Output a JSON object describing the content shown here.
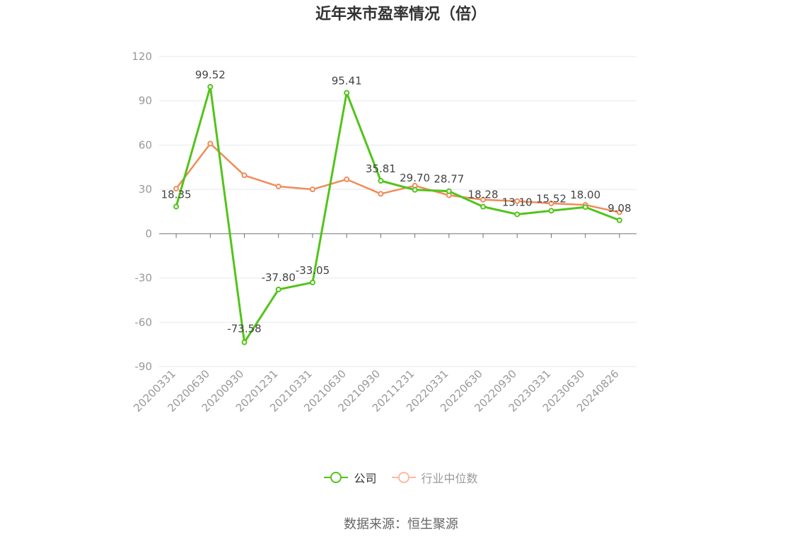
{
  "chart_data": {
    "type": "line",
    "title": "近年来市盈率情况（倍）",
    "categories": [
      "20200331",
      "20200630",
      "20200930",
      "20201231",
      "20210331",
      "20210630",
      "20210930",
      "20211231",
      "20220331",
      "20220630",
      "20220930",
      "20230331",
      "20230630",
      "20240826"
    ],
    "ylim": [
      -90,
      120
    ],
    "yticks": [
      120,
      90,
      60,
      30,
      0,
      -30,
      -60,
      -90
    ],
    "grid": true,
    "legend_position": "bottom",
    "series": [
      {
        "name": "公司",
        "color": "#52c41a",
        "values": [
          18.35,
          99.52,
          -73.58,
          -37.8,
          -33.05,
          95.41,
          35.81,
          29.7,
          28.77,
          18.28,
          13.1,
          15.52,
          18.0,
          9.08
        ],
        "labels": [
          "18.35",
          "99.52",
          "-73.58",
          "-37.80",
          "-33.05",
          "95.41",
          "35.81",
          "29.70",
          "28.77",
          "18.28",
          "13.10",
          "15.52",
          "18.00",
          "9.08"
        ]
      },
      {
        "name": "行业中位数",
        "color": "#f08c5a",
        "values": [
          30.5,
          61.0,
          39.5,
          32.0,
          30.0,
          36.8,
          27.0,
          32.5,
          26.0,
          23.0,
          22.0,
          20.5,
          19.5,
          14.5
        ]
      }
    ]
  },
  "legend": {
    "company": "公司",
    "industry": "行业中位数"
  },
  "source": "数据来源：恒生聚源"
}
